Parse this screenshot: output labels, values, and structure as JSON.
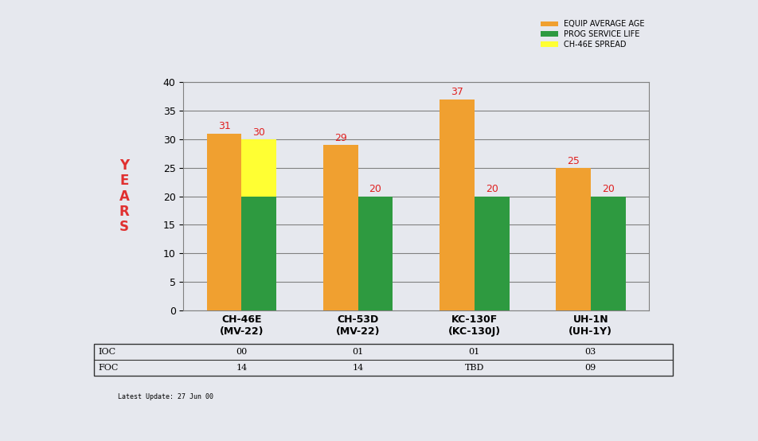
{
  "chart_data": {
    "type": "bar",
    "y_label": "YEARS",
    "categories": [
      "CH-46E\n(MV-22)",
      "CH-53D\n(MV-22)",
      "KC-130F\n(KC-130J)",
      "UH-1N\n(UH-1Y)"
    ],
    "series": [
      {
        "name": "EQUIP AVERAGE AGE",
        "color": "#f0a030",
        "values": [
          31,
          29,
          37,
          25
        ]
      },
      {
        "name": "CH-46E SPREAD",
        "color": "#ffff33",
        "values": [
          30,
          null,
          null,
          null
        ]
      },
      {
        "name": "PROG SERVICE LIFE",
        "color": "#2e9a40",
        "values": [
          20,
          20,
          20,
          20
        ],
        "value_labels": [
          null,
          "20",
          "20",
          "20"
        ]
      }
    ],
    "legend_order": [
      "EQUIP AVERAGE AGE",
      "PROG SERVICE LIFE",
      "CH-46E SPREAD"
    ],
    "ylim": [
      0,
      40
    ],
    "yticks": [
      0,
      5,
      10,
      15,
      20,
      25,
      30,
      35,
      40
    ],
    "grid": true,
    "data_labels": true,
    "legend": "upper right",
    "table": {
      "rows": [
        {
          "label": "IOC",
          "values": [
            "00",
            "01",
            "01",
            "03"
          ]
        },
        {
          "label": "FOC",
          "values": [
            "14",
            "14",
            "TBD",
            "09"
          ]
        }
      ]
    },
    "footnote": "Latest Update: 27 Jun 00"
  }
}
